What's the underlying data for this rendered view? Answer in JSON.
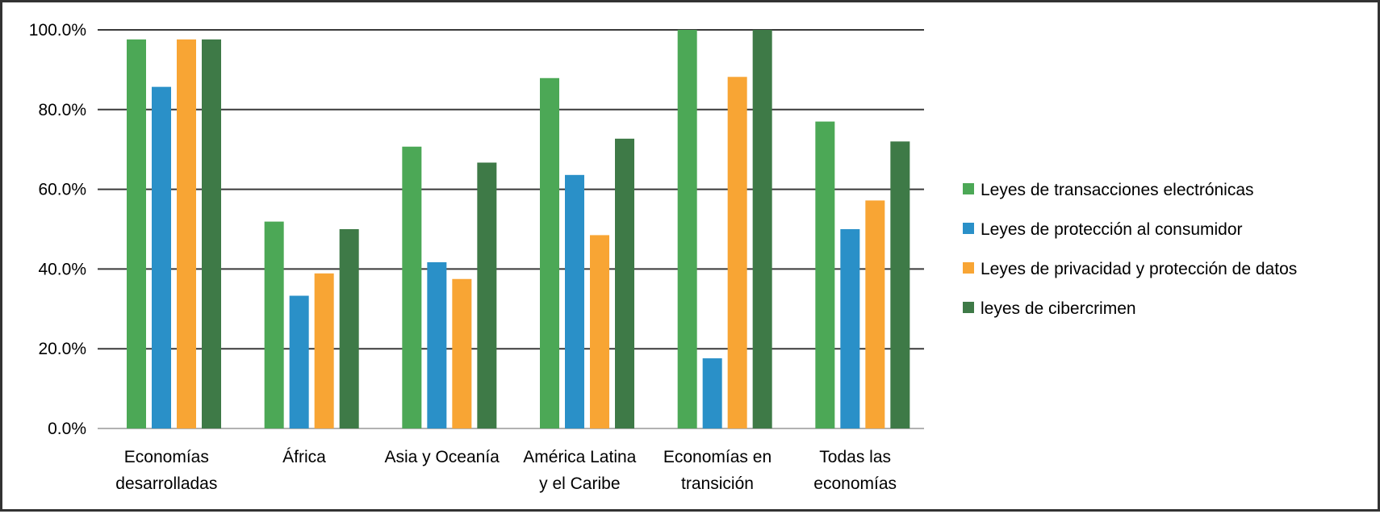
{
  "chart_data": {
    "type": "bar",
    "title": "",
    "xlabel": "",
    "ylabel": "",
    "ylim": [
      0,
      100
    ],
    "y_ticks": [
      "0.0%",
      "20.0%",
      "40.0%",
      "60.0%",
      "80.0%",
      "100.0%"
    ],
    "y_tick_values": [
      0,
      20,
      40,
      60,
      80,
      100
    ],
    "grid": true,
    "legend_position": "right",
    "categories": [
      [
        "Economías",
        "desarrolladas"
      ],
      [
        "África"
      ],
      [
        "Asia y Oceanía"
      ],
      [
        "América Latina",
        "y el Caribe"
      ],
      [
        "Economías en",
        "transición"
      ],
      [
        "Todas las",
        "economías"
      ]
    ],
    "series": [
      {
        "name": "Leyes de transacciones electrónicas",
        "color": "#4CA856",
        "values": [
          97.6,
          51.9,
          70.7,
          87.9,
          100,
          77.0
        ]
      },
      {
        "name": "Leyes de protección al consumidor",
        "color": "#2A90C8",
        "values": [
          85.7,
          33.3,
          41.7,
          63.6,
          17.6,
          50.0
        ]
      },
      {
        "name": "Leyes de privacidad y protección de datos",
        "color": "#F8A534",
        "values": [
          97.6,
          38.9,
          37.5,
          48.5,
          88.2,
          57.2
        ]
      },
      {
        "name": "leyes de cibercrimen",
        "color": "#3E7A47",
        "values": [
          97.6,
          50.0,
          66.7,
          72.7,
          100,
          72.0
        ]
      }
    ]
  }
}
